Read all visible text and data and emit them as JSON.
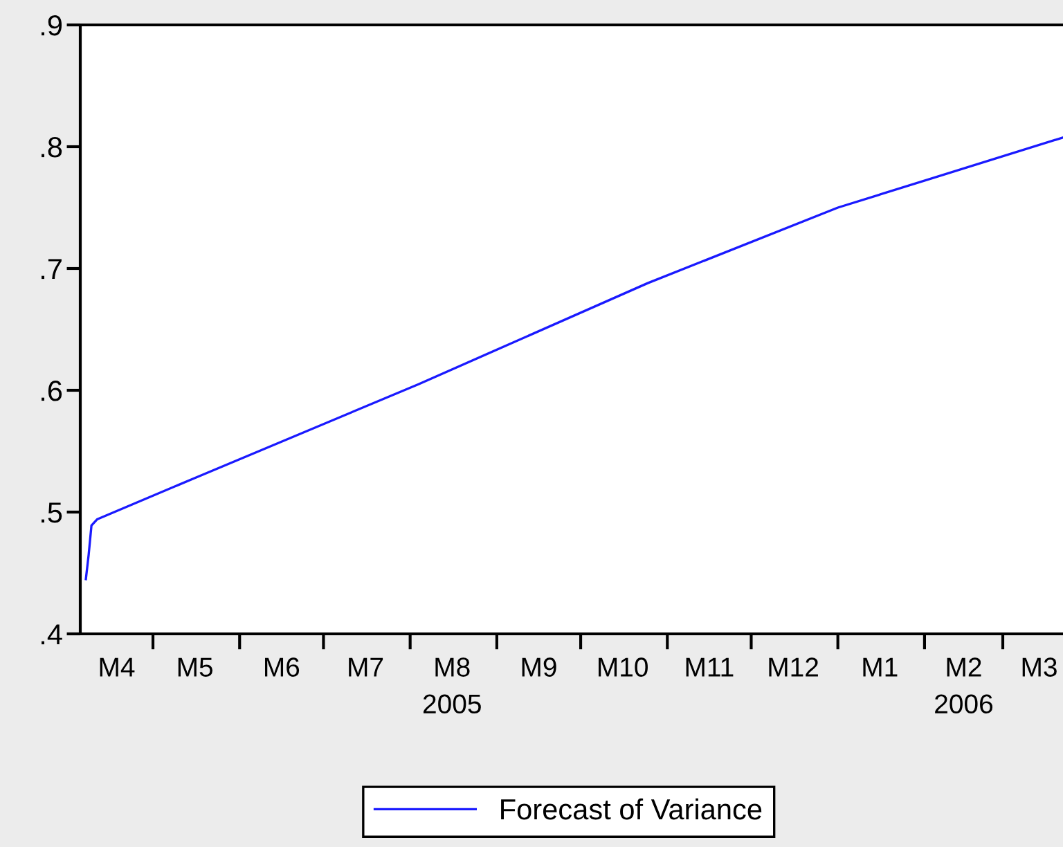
{
  "chart_data": {
    "type": "line",
    "x": [
      "2005-04-07",
      "2005-04-08",
      "2005-04-09",
      "2005-04-11",
      "2005-05-16",
      "2005-08-04",
      "2005-10-25",
      "2006-01-01",
      "2006-03-26"
    ],
    "series": [
      {
        "name": "Forecast of Variance",
        "color": "#1a1aff",
        "values": [
          0.445,
          0.465,
          0.489,
          0.494,
          0.528,
          0.605,
          0.688,
          0.75,
          0.81
        ]
      }
    ],
    "xlim": [
      "2005-04-05",
      "2006-03-26"
    ],
    "xticks": [
      {
        "value": "2005-05-01",
        "label": null
      },
      {
        "value": "2005-06-01",
        "label": null
      },
      {
        "value": "2005-07-01",
        "label": null
      },
      {
        "value": "2005-08-01",
        "label": null
      },
      {
        "value": "2005-09-01",
        "label": null
      },
      {
        "value": "2005-10-01",
        "label": null
      },
      {
        "value": "2005-11-01",
        "label": null
      },
      {
        "value": "2005-12-01",
        "label": null
      },
      {
        "value": "2006-01-01",
        "label": null
      },
      {
        "value": "2006-02-01",
        "label": null
      },
      {
        "value": "2006-03-01",
        "label": null
      },
      {
        "value": "2005-04-18",
        "label": "M4"
      },
      {
        "value": "2005-05-16",
        "label": "M5"
      },
      {
        "value": "2005-06-16",
        "label": "M6"
      },
      {
        "value": "2005-07-16",
        "label": "M7"
      },
      {
        "value": "2005-08-16",
        "label": "M8\n2005"
      },
      {
        "value": "2005-09-16",
        "label": "M9"
      },
      {
        "value": "2005-10-16",
        "label": "M10"
      },
      {
        "value": "2005-11-16",
        "label": "M11"
      },
      {
        "value": "2005-12-16",
        "label": "M12"
      },
      {
        "value": "2006-01-16",
        "label": "M1"
      },
      {
        "value": "2006-02-15",
        "label": "M2\n2006"
      },
      {
        "value": "2006-03-14",
        "label": "M3"
      }
    ],
    "ylim": [
      0.4,
      0.9
    ],
    "yticks": [
      {
        "value": 0.4,
        "label": ".4"
      },
      {
        "value": 0.5,
        "label": ".5"
      },
      {
        "value": 0.6,
        "label": ".6"
      },
      {
        "value": 0.7,
        "label": ".7"
      },
      {
        "value": 0.8,
        "label": ".8"
      },
      {
        "value": 0.9,
        "label": ".9"
      }
    ],
    "legend": "bottom",
    "grid": false,
    "marker": "none",
    "line_style": "solid"
  }
}
